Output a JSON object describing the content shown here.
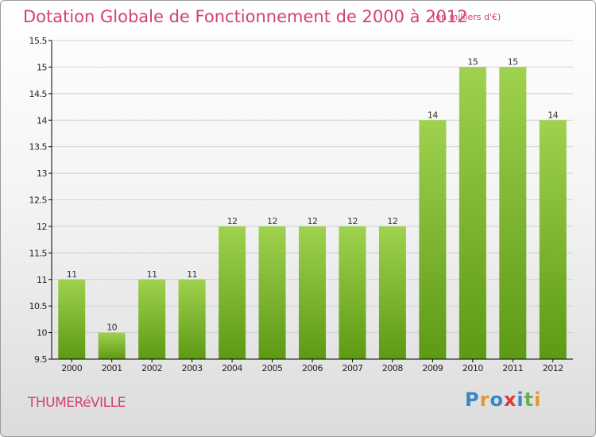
{
  "title": "Dotation Globale de Fonctionnement de 2000 à 2012",
  "subtitle": "(en milliers d'€)",
  "footer": {
    "town": "THUMERéVILLE"
  },
  "logo": {
    "text": "Proxiti",
    "letters": [
      "P",
      "r",
      "o",
      "x",
      "i",
      "t",
      "i"
    ],
    "colors": [
      "#3a86c8",
      "#e8962e",
      "#3a86c8",
      "#d93a3a",
      "#3a86c8",
      "#6ab04c",
      "#e8962e"
    ]
  },
  "colors": {
    "title": "#d33f7a",
    "bar_top": "#9fd24e",
    "bar_bottom": "#5d9a14",
    "axis": "#000000",
    "grid": "#d0d0d0"
  },
  "chart_data": {
    "type": "bar",
    "categories": [
      "2000",
      "2001",
      "2002",
      "2003",
      "2004",
      "2005",
      "2006",
      "2007",
      "2008",
      "2009",
      "2010",
      "2011",
      "2012"
    ],
    "values": [
      11,
      10,
      11,
      11,
      12,
      12,
      12,
      12,
      12,
      14,
      15,
      15,
      14
    ],
    "labels": [
      "11",
      "10",
      "11",
      "11",
      "12",
      "12",
      "12",
      "12",
      "12",
      "14",
      "15",
      "15",
      "14"
    ],
    "ylim": [
      9.5,
      15.5
    ],
    "yticks": [
      "9.5",
      "10",
      "10.5",
      "11",
      "11.5",
      "12",
      "12.5",
      "13",
      "13.5",
      "14",
      "14.5",
      "15",
      "15.5"
    ],
    "grid": true,
    "xlabel": "",
    "ylabel": ""
  }
}
